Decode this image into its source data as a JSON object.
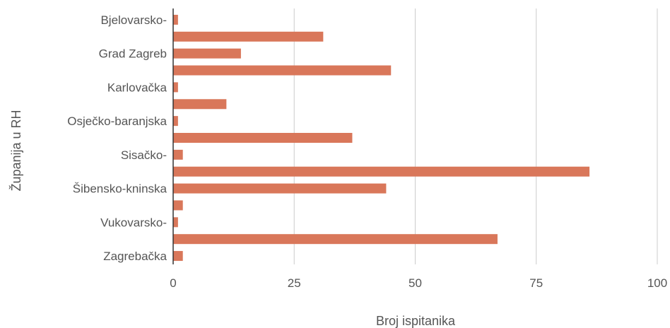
{
  "chart_data": {
    "type": "bar",
    "orientation": "horizontal",
    "title": "",
    "xlabel": "Broj ispitanika",
    "ylabel": "Županija u RH",
    "xlim": [
      0,
      100
    ],
    "xticks": [
      0,
      25,
      50,
      75,
      100
    ],
    "grid": "vertical",
    "legend": "none",
    "bar_color": "#d9775a",
    "categories": [
      "Bjelovarsko-",
      "",
      "Grad Zagreb",
      "",
      "Karlovačka",
      "",
      "Osječko-baranjska",
      "",
      "Sisačko-",
      "",
      "Šibensko-kninska",
      "",
      "Vukovarsko-",
      "",
      "Zagrebačka"
    ],
    "values": [
      1,
      31,
      14,
      45,
      1,
      11,
      1,
      37,
      2,
      86,
      44,
      2,
      1,
      67,
      2
    ]
  }
}
